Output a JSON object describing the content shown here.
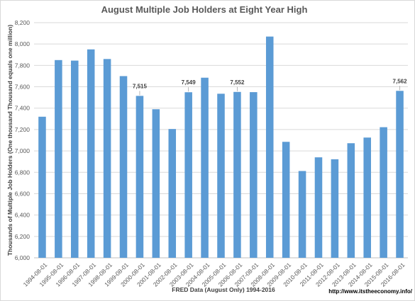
{
  "chart_data": {
    "type": "bar",
    "title": "August Multiple Job Holders at Eight Year High",
    "xlabel": "FRED Data (August Only) 1994-2016",
    "ylabel": "Thousands of Multiple Job Holders (One thousand Thousand equals one million)",
    "source_url": "http://www.itstheeconomy.info/",
    "ylim": [
      6000,
      8200
    ],
    "ytick_step": 200,
    "grid": true,
    "legend": "none",
    "bar_color": "#5b9bd5",
    "categories": [
      "1994-08-01",
      "1995-08-01",
      "1996-08-01",
      "1997-08-01",
      "1998-08-01",
      "1999-08-01",
      "2000-08-01",
      "2001-08-01",
      "2002-08-01",
      "2003-08-01",
      "2004-08-01",
      "2005-08-01",
      "2006-08-01",
      "2007-08-01",
      "2008-08-01",
      "2009-08-01",
      "2010-08-01",
      "2011-08-01",
      "2012-08-01",
      "2013-08-01",
      "2014-08-01",
      "2015-08-01",
      "2016-08-01"
    ],
    "values": [
      7320,
      7850,
      7845,
      7950,
      7860,
      7700,
      7515,
      7390,
      7205,
      7549,
      7685,
      7535,
      7552,
      7550,
      8070,
      7085,
      6812,
      6940,
      6922,
      7072,
      7125,
      7222,
      7562
    ],
    "labeled_points": [
      {
        "category": "2000-08-01",
        "label": "7,515"
      },
      {
        "category": "2003-08-01",
        "label": "7,549"
      },
      {
        "category": "2006-08-01",
        "label": "7,552"
      },
      {
        "category": "2016-08-01",
        "label": "7,562"
      }
    ]
  }
}
